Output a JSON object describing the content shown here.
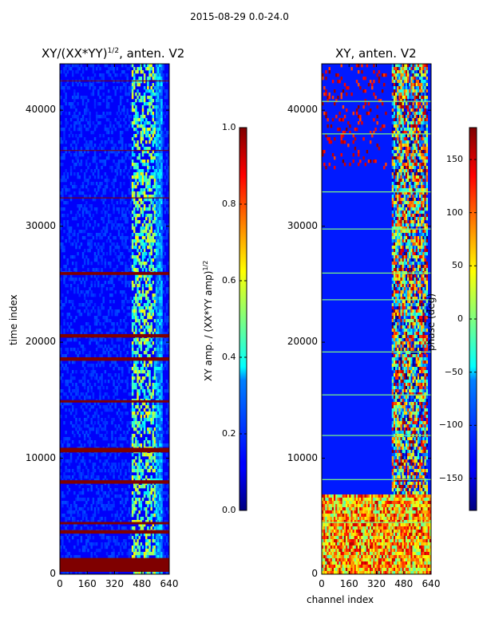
{
  "suptitle": "2015-08-29 0.0-24.0",
  "chart_data": [
    {
      "type": "heatmap",
      "title_base": "XY/(XX*YY)",
      "title_exp": "1/2",
      "title_tail": ", anten. V2",
      "ylabel": "time index",
      "xlabel": "",
      "xlim": [
        0,
        640
      ],
      "ylim": [
        0,
        44000
      ],
      "xticks": [
        "0",
        "160",
        "320",
        "480",
        "640"
      ],
      "yticks": [
        "0",
        "10000",
        "20000",
        "30000",
        "40000"
      ],
      "colorbar": {
        "label_base": "XY amp. / (XX*YY amp)",
        "label_exp": "1/2",
        "range": [
          0.0,
          1.0
        ],
        "ticks": [
          "0.0",
          "0.2",
          "0.4",
          "0.6",
          "0.8",
          "1.0"
        ],
        "colormap": "jet"
      }
    },
    {
      "type": "heatmap",
      "title": "XY, anten. V2",
      "ylabel": "",
      "xlabel": "channel index",
      "xlim": [
        0,
        640
      ],
      "ylim": [
        0,
        44000
      ],
      "xticks": [
        "0",
        "160",
        "320",
        "480",
        "640"
      ],
      "yticks": [
        "0",
        "10000",
        "20000",
        "30000",
        "40000"
      ],
      "colorbar": {
        "label": "phase (deg)",
        "range": [
          -180,
          180
        ],
        "ticks": [
          "−150",
          "−100",
          "−50",
          "0",
          "50",
          "100",
          "150"
        ],
        "colormap": "jet"
      }
    }
  ]
}
